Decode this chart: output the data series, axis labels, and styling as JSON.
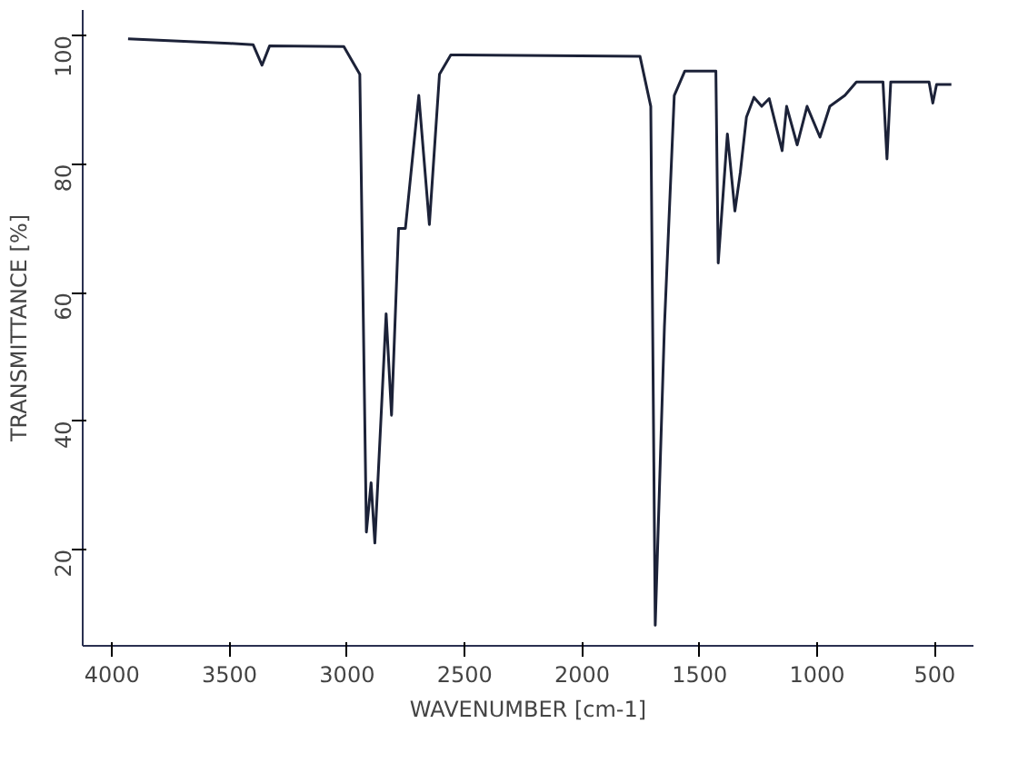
{
  "chart_data": {
    "type": "line",
    "xlabel": "WAVENUMBER [cm-1]",
    "ylabel": "TRANSMITTANCE [%]",
    "x": [
      3932,
      3500,
      3400,
      3362,
      3330,
      3014,
      2946,
      2918,
      2898,
      2882,
      2834,
      2811,
      2781,
      2752,
      2695,
      2650,
      2607,
      2559,
      1754,
      1708,
      1689,
      1650,
      1608,
      1563,
      1431,
      1421,
      1382,
      1350,
      1327,
      1301,
      1269,
      1236,
      1204,
      1149,
      1130,
      1085,
      1043,
      988,
      946,
      882,
      833,
      720,
      703,
      687,
      524,
      508,
      492,
      429
    ],
    "series": [
      {
        "color": "#1c2238",
        "values": [
          99.5,
          98.8,
          98.6,
          95.4,
          98.4,
          98.3,
          94,
          22.7,
          30.4,
          21,
          56.7,
          40.9,
          70,
          70,
          90.7,
          70.6,
          94,
          97,
          96.8,
          89,
          8.2,
          54.6,
          90.7,
          94.5,
          94.5,
          64.6,
          84.7,
          72.7,
          78.7,
          87.3,
          90.4,
          89,
          90.2,
          82.1,
          89,
          83,
          89,
          84.2,
          89,
          90.7,
          92.8,
          92.8,
          80.8,
          92.8,
          92.8,
          89.5,
          92.4,
          92.4
        ]
      }
    ],
    "xlim": [
      4125,
      335
    ],
    "ylim": [
      5,
      104
    ],
    "xticks": [
      4000,
      3500,
      3000,
      2500,
      2000,
      1500,
      1000,
      500
    ],
    "yticks": [
      20,
      40,
      60,
      80,
      100
    ],
    "grid": false,
    "marker": "none",
    "line_style": "solid"
  }
}
